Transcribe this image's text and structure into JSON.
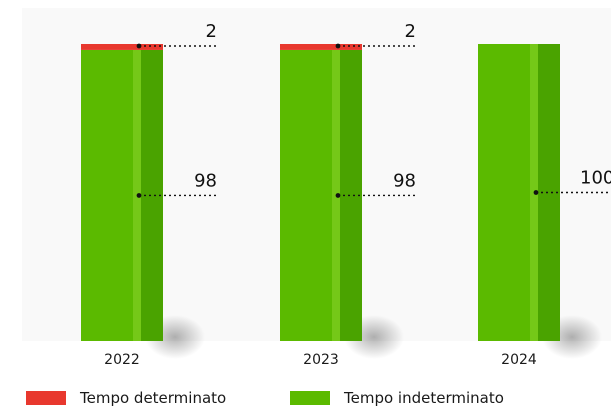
{
  "chart_data": {
    "type": "bar",
    "stacked": true,
    "categories": [
      "2022",
      "2023",
      "2024"
    ],
    "series": [
      {
        "name": "Tempo determinato",
        "values": [
          2,
          2,
          0
        ],
        "color": "#e8382e"
      },
      {
        "name": "Tempo indeterminato",
        "values": [
          98,
          98,
          100
        ],
        "color": "#5bba00"
      }
    ],
    "data_labels": [
      {
        "category": "2022",
        "series": "Tempo determinato",
        "text": "2"
      },
      {
        "category": "2022",
        "series": "Tempo indeterminato",
        "text": "98"
      },
      {
        "category": "2023",
        "series": "Tempo determinato",
        "text": "2"
      },
      {
        "category": "2023",
        "series": "Tempo indeterminato",
        "text": "98"
      },
      {
        "category": "2024",
        "series": "Tempo indeterminato",
        "text": "100"
      }
    ],
    "ylim": [
      0,
      100
    ],
    "grid": false,
    "legend_position": "bottom-left",
    "colors": {
      "plot_background": "#f9f9f9",
      "bar_dark_stripe": "#4aa300",
      "bar_light_stripe": "#7ccc1e",
      "leader_line": "#111111"
    }
  },
  "legend": {
    "items": [
      {
        "label": "Tempo determinato",
        "color": "#e8382e"
      },
      {
        "label": "Tempo indeterminato",
        "color": "#5bba00"
      }
    ]
  }
}
